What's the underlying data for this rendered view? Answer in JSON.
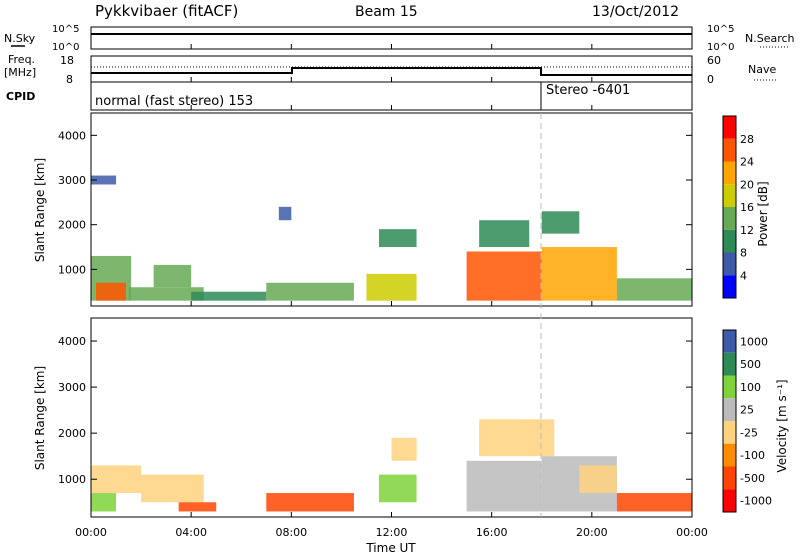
{
  "header": {
    "station": "Pykkvibaer (fitACF)",
    "beam": "Beam 15",
    "date": "13/Oct/2012"
  },
  "top_panels": {
    "nsky": {
      "label": "N.Sky",
      "ticks": [
        "10^5",
        "10^0"
      ]
    },
    "nsearch": {
      "label": "N.Search",
      "ticks": [
        "10^5",
        "10^0"
      ]
    },
    "freq": {
      "label_line1": "Freq.",
      "label_line2": "[MHz]",
      "ticks": [
        "18",
        "8"
      ]
    },
    "nave": {
      "label": "Nave",
      "ticks": [
        "60",
        "0"
      ]
    },
    "cpid": {
      "label": "CPID",
      "modes": [
        "normal (fast stereo) 153",
        "Stereo -6401"
      ]
    }
  },
  "colors": {
    "power_scale": [
      "#0000ff",
      "#3c5aa8",
      "#2e8b57",
      "#66aa55",
      "#cccc00",
      "#ffa500",
      "#ff5500",
      "#ff0000"
    ],
    "velocity_scale": [
      "#ff0000",
      "#ff4500",
      "#ff8c00",
      "#ffd27f",
      "#bbbbbb",
      "#7fd23a",
      "#2e8b57",
      "#3c5aa8"
    ]
  },
  "chart_data": [
    {
      "type": "heatmap",
      "panel": "power",
      "ylabel": "Slant Range [km]",
      "xlabel": "",
      "yticks": [
        "4000",
        "3000",
        "2000",
        "1000"
      ],
      "ylim": [
        180,
        4500
      ],
      "colorbar_label": "Power [dB]",
      "colorbar_ticks": [
        "28",
        "24",
        "20",
        "16",
        "12",
        "8",
        "4"
      ],
      "colorbar_range": [
        0,
        32
      ],
      "regions": [
        {
          "t0": 0.0,
          "t1": 1.6,
          "r0": 300,
          "r1": 1300,
          "value": 14
        },
        {
          "t0": 0.2,
          "t1": 1.4,
          "r0": 300,
          "r1": 700,
          "value": 26
        },
        {
          "t0": 0.0,
          "t1": 1.0,
          "r0": 2900,
          "r1": 3100,
          "value": 6
        },
        {
          "t0": 1.5,
          "t1": 4.5,
          "r0": 300,
          "r1": 600,
          "value": 14
        },
        {
          "t0": 2.5,
          "t1": 4.0,
          "r0": 600,
          "r1": 1100,
          "value": 12
        },
        {
          "t0": 4.0,
          "t1": 7.0,
          "r0": 300,
          "r1": 500,
          "value": 8
        },
        {
          "t0": 7.0,
          "t1": 10.5,
          "r0": 300,
          "r1": 700,
          "value": 12
        },
        {
          "t0": 7.5,
          "t1": 8.0,
          "r0": 2100,
          "r1": 2400,
          "value": 6
        },
        {
          "t0": 11.0,
          "t1": 13.0,
          "r0": 300,
          "r1": 900,
          "value": 18
        },
        {
          "t0": 11.5,
          "t1": 13.0,
          "r0": 1500,
          "r1": 1900,
          "value": 8
        },
        {
          "t0": 15.0,
          "t1": 18.0,
          "r0": 300,
          "r1": 1400,
          "value": 24
        },
        {
          "t0": 15.5,
          "t1": 17.5,
          "r0": 1500,
          "r1": 2100,
          "value": 10
        },
        {
          "t0": 18.0,
          "t1": 21.0,
          "r0": 300,
          "r1": 1500,
          "value": 22
        },
        {
          "t0": 18.0,
          "t1": 19.5,
          "r0": 1800,
          "r1": 2300,
          "value": 10
        },
        {
          "t0": 21.0,
          "t1": 24.0,
          "r0": 300,
          "r1": 800,
          "value": 14
        }
      ]
    },
    {
      "type": "heatmap",
      "panel": "velocity",
      "ylabel": "Slant Range [km]",
      "xlabel": "Time UT",
      "yticks": [
        "4000",
        "3000",
        "2000",
        "1000"
      ],
      "ylim": [
        180,
        4500
      ],
      "xticks": [
        "00:00",
        "04:00",
        "08:00",
        "12:00",
        "16:00",
        "20:00",
        "00:00"
      ],
      "xlim": [
        0,
        24
      ],
      "colorbar_label": "Velocity [m s⁻¹]",
      "colorbar_ticks": [
        "1000",
        "500",
        "100",
        "25",
        "-25",
        "-100",
        "-500",
        "-1000"
      ],
      "regions": [
        {
          "t0": 0.0,
          "t1": 1.0,
          "r0": 300,
          "r1": 700,
          "value": 200
        },
        {
          "t0": 0.0,
          "t1": 2.0,
          "r0": 700,
          "r1": 1300,
          "value": 0
        },
        {
          "t0": 2.0,
          "t1": 4.5,
          "r0": 500,
          "r1": 1100,
          "value": 0
        },
        {
          "t0": 3.5,
          "t1": 5.0,
          "r0": 300,
          "r1": 500,
          "value": -200
        },
        {
          "t0": 7.0,
          "t1": 10.5,
          "r0": 300,
          "r1": 700,
          "value": -200
        },
        {
          "t0": 11.5,
          "t1": 13.0,
          "r0": 500,
          "r1": 1100,
          "value": 300
        },
        {
          "t0": 12.0,
          "t1": 13.0,
          "r0": 1400,
          "r1": 1900,
          "value": 0
        },
        {
          "t0": 15.0,
          "t1": 18.0,
          "r0": 300,
          "r1": 1400,
          "value": 80
        },
        {
          "t0": 15.5,
          "t1": 18.5,
          "r0": 1500,
          "r1": 2300,
          "value": 0
        },
        {
          "t0": 18.0,
          "t1": 21.0,
          "r0": 300,
          "r1": 1500,
          "value": 80
        },
        {
          "t0": 19.5,
          "t1": 21.0,
          "r0": 700,
          "r1": 1300,
          "value": 0
        },
        {
          "t0": 21.0,
          "t1": 24.0,
          "r0": 300,
          "r1": 700,
          "value": -100
        }
      ]
    }
  ]
}
